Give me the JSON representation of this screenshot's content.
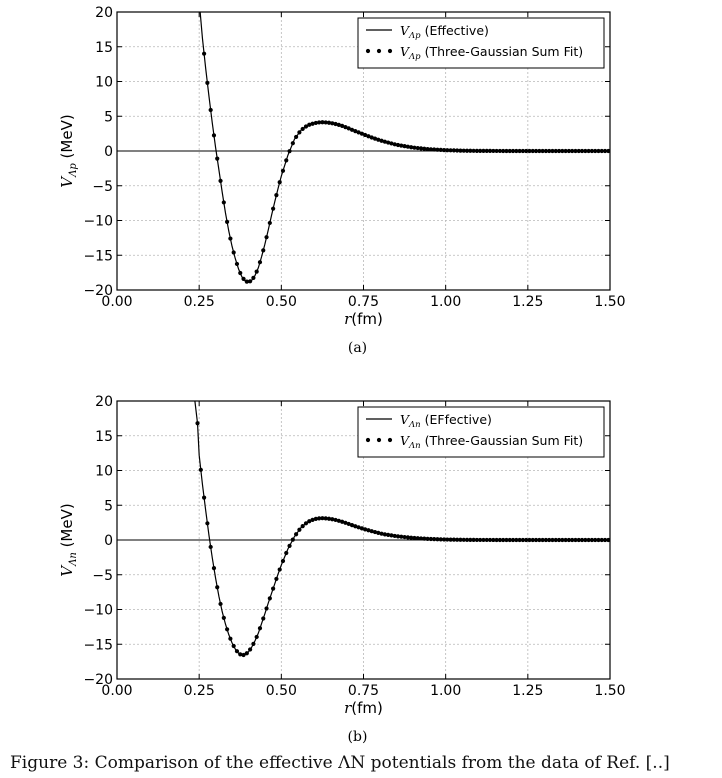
{
  "chart_data": [
    {
      "type": "line",
      "panel_label": "(a)",
      "xlabel": "r(fm)",
      "ylabel": "V_Λp (MeV)",
      "ylabel_main": "V",
      "ylabel_sub": "Λp",
      "ylabel_unit": " (MeV)",
      "xlim": [
        0.0,
        1.5
      ],
      "ylim": [
        -20,
        20
      ],
      "xticks": [
        "0.00",
        "0.25",
        "0.50",
        "0.75",
        "1.00",
        "1.25",
        "1.50"
      ],
      "yticks": [
        "20",
        "15",
        "10",
        "5",
        "0",
        "−5",
        "−10",
        "−15",
        "−20"
      ],
      "grid": true,
      "legend_position": "top-right",
      "series": [
        {
          "name": "V_Λp (Effective)",
          "legend_main": "V",
          "legend_sub": "Λp",
          "legend_text": " (Effective)",
          "style": "solid-line",
          "x": [
            0.253,
            0.26,
            0.27,
            0.28,
            0.29,
            0.3,
            0.31,
            0.32,
            0.33,
            0.34,
            0.35,
            0.36,
            0.37,
            0.38,
            0.39,
            0.4,
            0.41,
            0.42,
            0.43,
            0.44,
            0.45,
            0.46,
            0.47,
            0.48,
            0.49,
            0.5,
            0.52,
            0.54,
            0.56,
            0.58,
            0.6,
            0.62,
            0.64,
            0.66,
            0.68,
            0.7,
            0.72,
            0.75,
            0.78,
            0.81,
            0.85,
            0.9,
            0.95,
            1.0,
            1.05,
            1.1,
            1.2,
            1.3,
            1.4,
            1.5
          ],
          "y": [
            20.0,
            16.2,
            11.8,
            7.8,
            4.0,
            0.5,
            -2.7,
            -5.9,
            -8.9,
            -11.5,
            -13.7,
            -15.5,
            -17.0,
            -18.1,
            -18.7,
            -18.9,
            -18.6,
            -17.9,
            -16.8,
            -15.2,
            -13.4,
            -11.4,
            -9.3,
            -7.3,
            -5.4,
            -3.6,
            -0.6,
            1.7,
            3.0,
            3.7,
            4.0,
            4.15,
            4.1,
            3.95,
            3.7,
            3.35,
            2.95,
            2.4,
            1.85,
            1.4,
            0.9,
            0.5,
            0.25,
            0.12,
            0.05,
            0.02,
            0.0,
            0.0,
            0.0,
            0.0
          ]
        },
        {
          "name": "V_Λp (Three-Gaussian Sum Fit)",
          "legend_main": "V",
          "legend_sub": "Λp",
          "legend_text": " (Three-Gaussian Sum Fit)",
          "style": "dots",
          "x_start": 0.265,
          "x_step": 0.01,
          "x_end": 1.5
        }
      ]
    },
    {
      "type": "line",
      "panel_label": "(b)",
      "xlabel": "r(fm)",
      "ylabel": "V_Λn (MeV)",
      "ylabel_main": "V",
      "ylabel_sub": "Λn",
      "ylabel_unit": " (MeV)",
      "xlim": [
        0.0,
        1.5
      ],
      "ylim": [
        -20,
        20
      ],
      "xticks": [
        "0.00",
        "0.25",
        "0.50",
        "0.75",
        "1.00",
        "1.25",
        "1.50"
      ],
      "yticks": [
        "20",
        "15",
        "10",
        "5",
        "0",
        "−5",
        "−10",
        "−15",
        "−20"
      ],
      "grid": true,
      "legend_position": "top-right",
      "series": [
        {
          "name": "V_Λn (EFfective)",
          "legend_main": "V",
          "legend_sub": "Λn",
          "legend_text": " (EFfective)",
          "style": "solid-line",
          "x": [
            0.237,
            0.245,
            0.25,
            0.26,
            0.27,
            0.28,
            0.29,
            0.3,
            0.31,
            0.32,
            0.33,
            0.34,
            0.35,
            0.36,
            0.37,
            0.38,
            0.39,
            0.4,
            0.41,
            0.42,
            0.43,
            0.44,
            0.45,
            0.46,
            0.47,
            0.48,
            0.49,
            0.5,
            0.52,
            0.54,
            0.56,
            0.58,
            0.6,
            0.62,
            0.64,
            0.66,
            0.68,
            0.7,
            0.72,
            0.75,
            0.78,
            0.81,
            0.85,
            0.9,
            0.95,
            1.0,
            1.05,
            1.1,
            1.2,
            1.3,
            1.4,
            1.5
          ],
          "y": [
            20.0,
            16.8,
            12.2,
            8.0,
            4.2,
            0.6,
            -2.6,
            -5.5,
            -8.1,
            -10.3,
            -12.1,
            -13.6,
            -14.8,
            -15.7,
            -16.3,
            -16.6,
            -16.5,
            -16.1,
            -15.4,
            -14.5,
            -13.4,
            -12.0,
            -10.6,
            -9.1,
            -7.7,
            -6.3,
            -4.9,
            -3.6,
            -1.3,
            0.5,
            1.8,
            2.6,
            3.0,
            3.15,
            3.1,
            2.95,
            2.7,
            2.4,
            2.05,
            1.6,
            1.2,
            0.85,
            0.55,
            0.3,
            0.15,
            0.07,
            0.03,
            0.01,
            0.0,
            0.0,
            0.0,
            0.0
          ]
        },
        {
          "name": "V_Λn (Three-Gaussian Sum Fit)",
          "legend_main": "V",
          "legend_sub": "Λn",
          "legend_text": " (Three-Gaussian Sum Fit)",
          "style": "dots",
          "x_start": 0.245,
          "x_step": 0.01,
          "x_end": 1.5
        }
      ]
    }
  ],
  "footer_text": "Figure 3: Comparison of the effective ΛN potentials from the data of Ref. [..]"
}
